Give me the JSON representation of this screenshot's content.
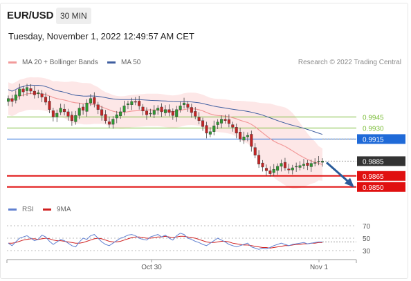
{
  "header": {
    "symbol": "EUR/USD",
    "timeframe": "30 MIN",
    "datetime": "Tuesday, November 1, 2022 12:49:57 AM CET"
  },
  "credit": "Research © 2022 Trading Central",
  "colors": {
    "ma20": "#f29a9a",
    "ma50": "#3f5ea0",
    "bollinger_fill": "#fde3e3",
    "candle_up": "#2f9a32",
    "candle_down": "#c32525",
    "support": "#e01010",
    "resistance_green": "#7cbd3a",
    "pivot_blue": "#1f6ad8",
    "last_price_bg": "#333333",
    "rsi": "#6080d0",
    "rsi_ma": "#d02020",
    "forecast_arrow": "#2a5b9a"
  },
  "chart_data": [
    {
      "type": "candlestick",
      "legend": [
        "MA 20 + Bollinger Bands",
        "MA 50"
      ],
      "ylim": [
        0.9832,
        1.001
      ],
      "x_labels": [
        "Oct 30",
        "Nov 1"
      ],
      "levels": [
        {
          "value": 0.9945,
          "label": "0.9945",
          "kind": "resistance",
          "color": "#7cbd3a"
        },
        {
          "value": 0.993,
          "label": "0.9930",
          "kind": "resistance",
          "color": "#7cbd3a"
        },
        {
          "value": 0.9915,
          "label": "0.9915",
          "kind": "pivot",
          "color": "#1f6ad8"
        },
        {
          "value": 0.9885,
          "label": "0.9885",
          "kind": "last",
          "color": "#333333"
        },
        {
          "value": 0.9865,
          "label": "0.9865",
          "kind": "support",
          "color": "#e01010"
        },
        {
          "value": 0.985,
          "label": "0.9850",
          "kind": "support",
          "color": "#e01010"
        }
      ],
      "forecast": "down",
      "closes": [
        0.997,
        0.9966,
        0.9975,
        0.9983,
        0.9979,
        0.9985,
        0.998,
        0.9975,
        0.9978,
        0.9972,
        0.9965,
        0.9955,
        0.9945,
        0.995,
        0.9957,
        0.9952,
        0.9946,
        0.994,
        0.9947,
        0.9957,
        0.9954,
        0.9964,
        0.997,
        0.9963,
        0.9955,
        0.9947,
        0.994,
        0.9935,
        0.9942,
        0.9948,
        0.9952,
        0.996,
        0.9963,
        0.9966,
        0.9965,
        0.996,
        0.9953,
        0.9948,
        0.995,
        0.9954,
        0.9957,
        0.9952,
        0.9955,
        0.9951,
        0.9947,
        0.9955,
        0.996,
        0.9964,
        0.9958,
        0.9951,
        0.9946,
        0.994,
        0.9932,
        0.9923,
        0.9925,
        0.9933,
        0.9938,
        0.9942,
        0.994,
        0.9936,
        0.9931,
        0.9923,
        0.9915,
        0.9918,
        0.992,
        0.9905,
        0.9893,
        0.9881,
        0.9877,
        0.9872,
        0.9868,
        0.9874,
        0.9878,
        0.9882,
        0.9876,
        0.9873,
        0.9876,
        0.9878,
        0.9879,
        0.9881,
        0.9879,
        0.9882,
        0.9883,
        0.9885,
        0.9885
      ]
    },
    {
      "type": "line",
      "legend": [
        "RSI",
        "9MA"
      ],
      "ylim": [
        20,
        80
      ],
      "yticks": [
        70,
        50,
        30
      ],
      "rsi": [
        42,
        38,
        44,
        50,
        52,
        54,
        50,
        46,
        48,
        55,
        52,
        45,
        40,
        44,
        48,
        46,
        42,
        38,
        36,
        44,
        50,
        48,
        54,
        56,
        50,
        44,
        40,
        38,
        42,
        46,
        50,
        52,
        55,
        56,
        54,
        50,
        48,
        47,
        52,
        54,
        56,
        52,
        55,
        50,
        47,
        54,
        58,
        56,
        50,
        48,
        45,
        43,
        40,
        38,
        42,
        46,
        50,
        47,
        44,
        40,
        38,
        36,
        38,
        40,
        42,
        36,
        34,
        32,
        34,
        33,
        35,
        38,
        40,
        42,
        40,
        38,
        40,
        41,
        42,
        43,
        41,
        42,
        43,
        44,
        44
      ],
      "ma": [
        42,
        42,
        43,
        45,
        47,
        48,
        49,
        49,
        48,
        49,
        50,
        49,
        47,
        46,
        46,
        45,
        44,
        43,
        42,
        42,
        43,
        45,
        47,
        49,
        50,
        49,
        47,
        45,
        44,
        44,
        45,
        47,
        49,
        51,
        52,
        52,
        51,
        50,
        50,
        51,
        52,
        52,
        53,
        52,
        51,
        52,
        53,
        53,
        52,
        51,
        50,
        48,
        46,
        44,
        43,
        43,
        44,
        45,
        45,
        44,
        42,
        41,
        40,
        39,
        39,
        38,
        37,
        36,
        35,
        35,
        34,
        35,
        36,
        37,
        38,
        38,
        39,
        40,
        40,
        41,
        41,
        42,
        42,
        43,
        43
      ]
    }
  ]
}
